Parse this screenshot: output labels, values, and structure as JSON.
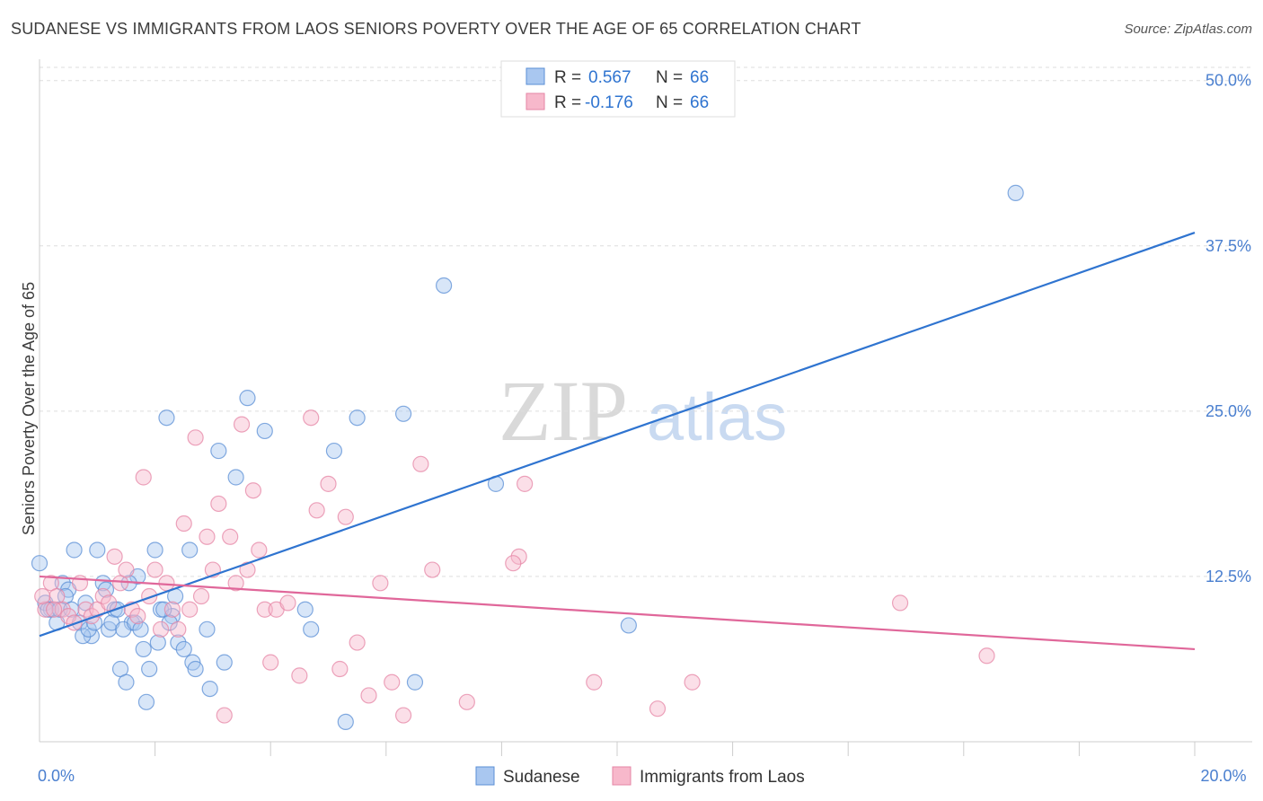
{
  "title": "SUDANESE VS IMMIGRANTS FROM LAOS SENIORS POVERTY OVER THE AGE OF 65 CORRELATION CHART",
  "source": "Source: ZipAtlas.com",
  "watermark": {
    "zip": "ZIP",
    "atlas": "atlas"
  },
  "legend_top": [
    {
      "r_label": "R = ",
      "r_value": "0.567",
      "n_label": "N = ",
      "n_value": "66"
    },
    {
      "r_label": "R = ",
      "r_value": "-0.176",
      "n_label": "N = ",
      "n_value": "66"
    }
  ],
  "legend_bottom": [
    "Sudanese",
    "Immigrants from Laos"
  ],
  "chart_data": {
    "type": "scatter",
    "title": "SUDANESE VS IMMIGRANTS FROM LAOS SENIORS POVERTY OVER THE AGE OF 65 CORRELATION CHART",
    "xlabel": "",
    "ylabel": "Seniors Poverty Over the Age of 65",
    "xlim": [
      0,
      20
    ],
    "ylim": [
      0,
      51
    ],
    "x_tick_labels": [
      {
        "value": 0,
        "label": "0.0%"
      },
      {
        "value": 20,
        "label": "20.0%"
      }
    ],
    "y_tick_labels": [
      {
        "value": 12.5,
        "label": "12.5%"
      },
      {
        "value": 25,
        "label": "25.0%"
      },
      {
        "value": 37.5,
        "label": "37.5%"
      },
      {
        "value": 50,
        "label": "50.0%"
      }
    ],
    "x_minor_ticks": [
      2,
      4,
      6,
      8,
      10,
      12,
      14,
      16,
      18,
      20
    ],
    "grid": true,
    "legend_position": "top-center",
    "colors": {
      "series1_fill": "#a9c7f0",
      "series1_stroke": "#5b8fd6",
      "series1_line": "#2f74d0",
      "series2_fill": "#f7b8cb",
      "series2_stroke": "#e586a6",
      "series2_line": "#e0679a",
      "axis_text": "#4a7fcf"
    },
    "series": [
      {
        "name": "Sudanese",
        "trend": {
          "x": [
            0,
            20
          ],
          "y": [
            8,
            38.5
          ]
        },
        "points": [
          [
            0.1,
            10.5
          ],
          [
            0.2,
            10
          ],
          [
            0.3,
            9
          ],
          [
            0.4,
            12
          ],
          [
            0.5,
            11.5
          ],
          [
            0.6,
            14.5
          ],
          [
            0.7,
            9
          ],
          [
            0.8,
            10.5
          ],
          [
            0.9,
            8
          ],
          [
            1.0,
            14.5
          ],
          [
            1.1,
            12
          ],
          [
            1.2,
            8.5
          ],
          [
            1.3,
            10
          ],
          [
            1.4,
            5.5
          ],
          [
            1.5,
            4.5
          ],
          [
            1.6,
            9
          ],
          [
            1.7,
            12.5
          ],
          [
            1.8,
            7
          ],
          [
            1.85,
            3
          ],
          [
            1.9,
            5.5
          ],
          [
            2.0,
            14.5
          ],
          [
            2.1,
            10
          ],
          [
            2.2,
            24.5
          ],
          [
            2.3,
            9.5
          ],
          [
            2.4,
            7.5
          ],
          [
            2.5,
            7
          ],
          [
            2.6,
            14.5
          ],
          [
            2.65,
            6
          ],
          [
            2.7,
            5.5
          ],
          [
            2.95,
            4
          ],
          [
            2.9,
            8.5
          ],
          [
            3.2,
            6
          ],
          [
            3.1,
            22
          ],
          [
            3.4,
            20
          ],
          [
            3.6,
            26
          ],
          [
            3.9,
            23.5
          ],
          [
            4.6,
            10
          ],
          [
            4.7,
            8.5
          ],
          [
            5.1,
            22
          ],
          [
            5.3,
            1.5
          ],
          [
            5.5,
            24.5
          ],
          [
            6.3,
            24.8
          ],
          [
            6.5,
            4.5
          ],
          [
            7.0,
            34.5
          ],
          [
            7.9,
            19.5
          ],
          [
            10.2,
            8.8
          ],
          [
            16.9,
            41.5
          ],
          [
            0.0,
            13.5
          ],
          [
            0.15,
            10
          ],
          [
            0.35,
            10
          ],
          [
            0.45,
            11
          ],
          [
            0.55,
            10
          ],
          [
            0.75,
            8
          ],
          [
            0.85,
            8.5
          ],
          [
            0.95,
            9
          ],
          [
            1.15,
            11.5
          ],
          [
            1.25,
            9
          ],
          [
            1.35,
            10
          ],
          [
            1.45,
            8.5
          ],
          [
            1.55,
            12
          ],
          [
            1.65,
            9
          ],
          [
            1.75,
            8.5
          ],
          [
            2.05,
            7.5
          ],
          [
            2.15,
            10
          ],
          [
            2.25,
            9
          ],
          [
            2.35,
            11
          ]
        ]
      },
      {
        "name": "Immigrants from Laos",
        "trend": {
          "x": [
            0,
            20
          ],
          "y": [
            12.5,
            7
          ]
        },
        "points": [
          [
            0.1,
            10
          ],
          [
            0.2,
            12
          ],
          [
            0.3,
            11
          ],
          [
            0.4,
            10
          ],
          [
            0.5,
            9.5
          ],
          [
            0.6,
            9
          ],
          [
            0.7,
            12
          ],
          [
            0.8,
            10
          ],
          [
            0.9,
            9.5
          ],
          [
            1.0,
            10
          ],
          [
            1.1,
            11
          ],
          [
            1.2,
            10.5
          ],
          [
            1.3,
            14
          ],
          [
            1.4,
            12
          ],
          [
            1.5,
            13
          ],
          [
            1.6,
            10
          ],
          [
            1.7,
            9.5
          ],
          [
            1.8,
            20
          ],
          [
            1.9,
            11
          ],
          [
            2.0,
            13
          ],
          [
            2.1,
            8.5
          ],
          [
            2.2,
            12
          ],
          [
            2.3,
            10
          ],
          [
            2.4,
            8.5
          ],
          [
            2.5,
            16.5
          ],
          [
            2.6,
            10
          ],
          [
            2.7,
            23
          ],
          [
            2.8,
            11
          ],
          [
            2.9,
            15.5
          ],
          [
            3.0,
            13
          ],
          [
            3.1,
            18
          ],
          [
            3.2,
            2
          ],
          [
            3.3,
            15.5
          ],
          [
            3.4,
            12
          ],
          [
            3.5,
            24
          ],
          [
            3.6,
            13
          ],
          [
            3.7,
            19
          ],
          [
            3.8,
            14.5
          ],
          [
            3.9,
            10
          ],
          [
            4.0,
            6
          ],
          [
            4.1,
            10
          ],
          [
            4.3,
            10.5
          ],
          [
            4.5,
            5
          ],
          [
            4.7,
            24.5
          ],
          [
            4.8,
            17.5
          ],
          [
            5.0,
            19.5
          ],
          [
            5.2,
            5.5
          ],
          [
            5.3,
            17
          ],
          [
            5.5,
            7.5
          ],
          [
            5.7,
            3.5
          ],
          [
            5.9,
            12
          ],
          [
            6.1,
            4.5
          ],
          [
            6.3,
            2
          ],
          [
            6.6,
            21
          ],
          [
            6.8,
            13
          ],
          [
            7.4,
            3
          ],
          [
            8.4,
            19.5
          ],
          [
            8.3,
            14
          ],
          [
            8.2,
            13.5
          ],
          [
            9.6,
            4.5
          ],
          [
            10.7,
            2.5
          ],
          [
            11.3,
            4.5
          ],
          [
            14.9,
            10.5
          ],
          [
            16.4,
            6.5
          ],
          [
            0.05,
            11
          ],
          [
            0.25,
            10
          ]
        ]
      }
    ]
  }
}
